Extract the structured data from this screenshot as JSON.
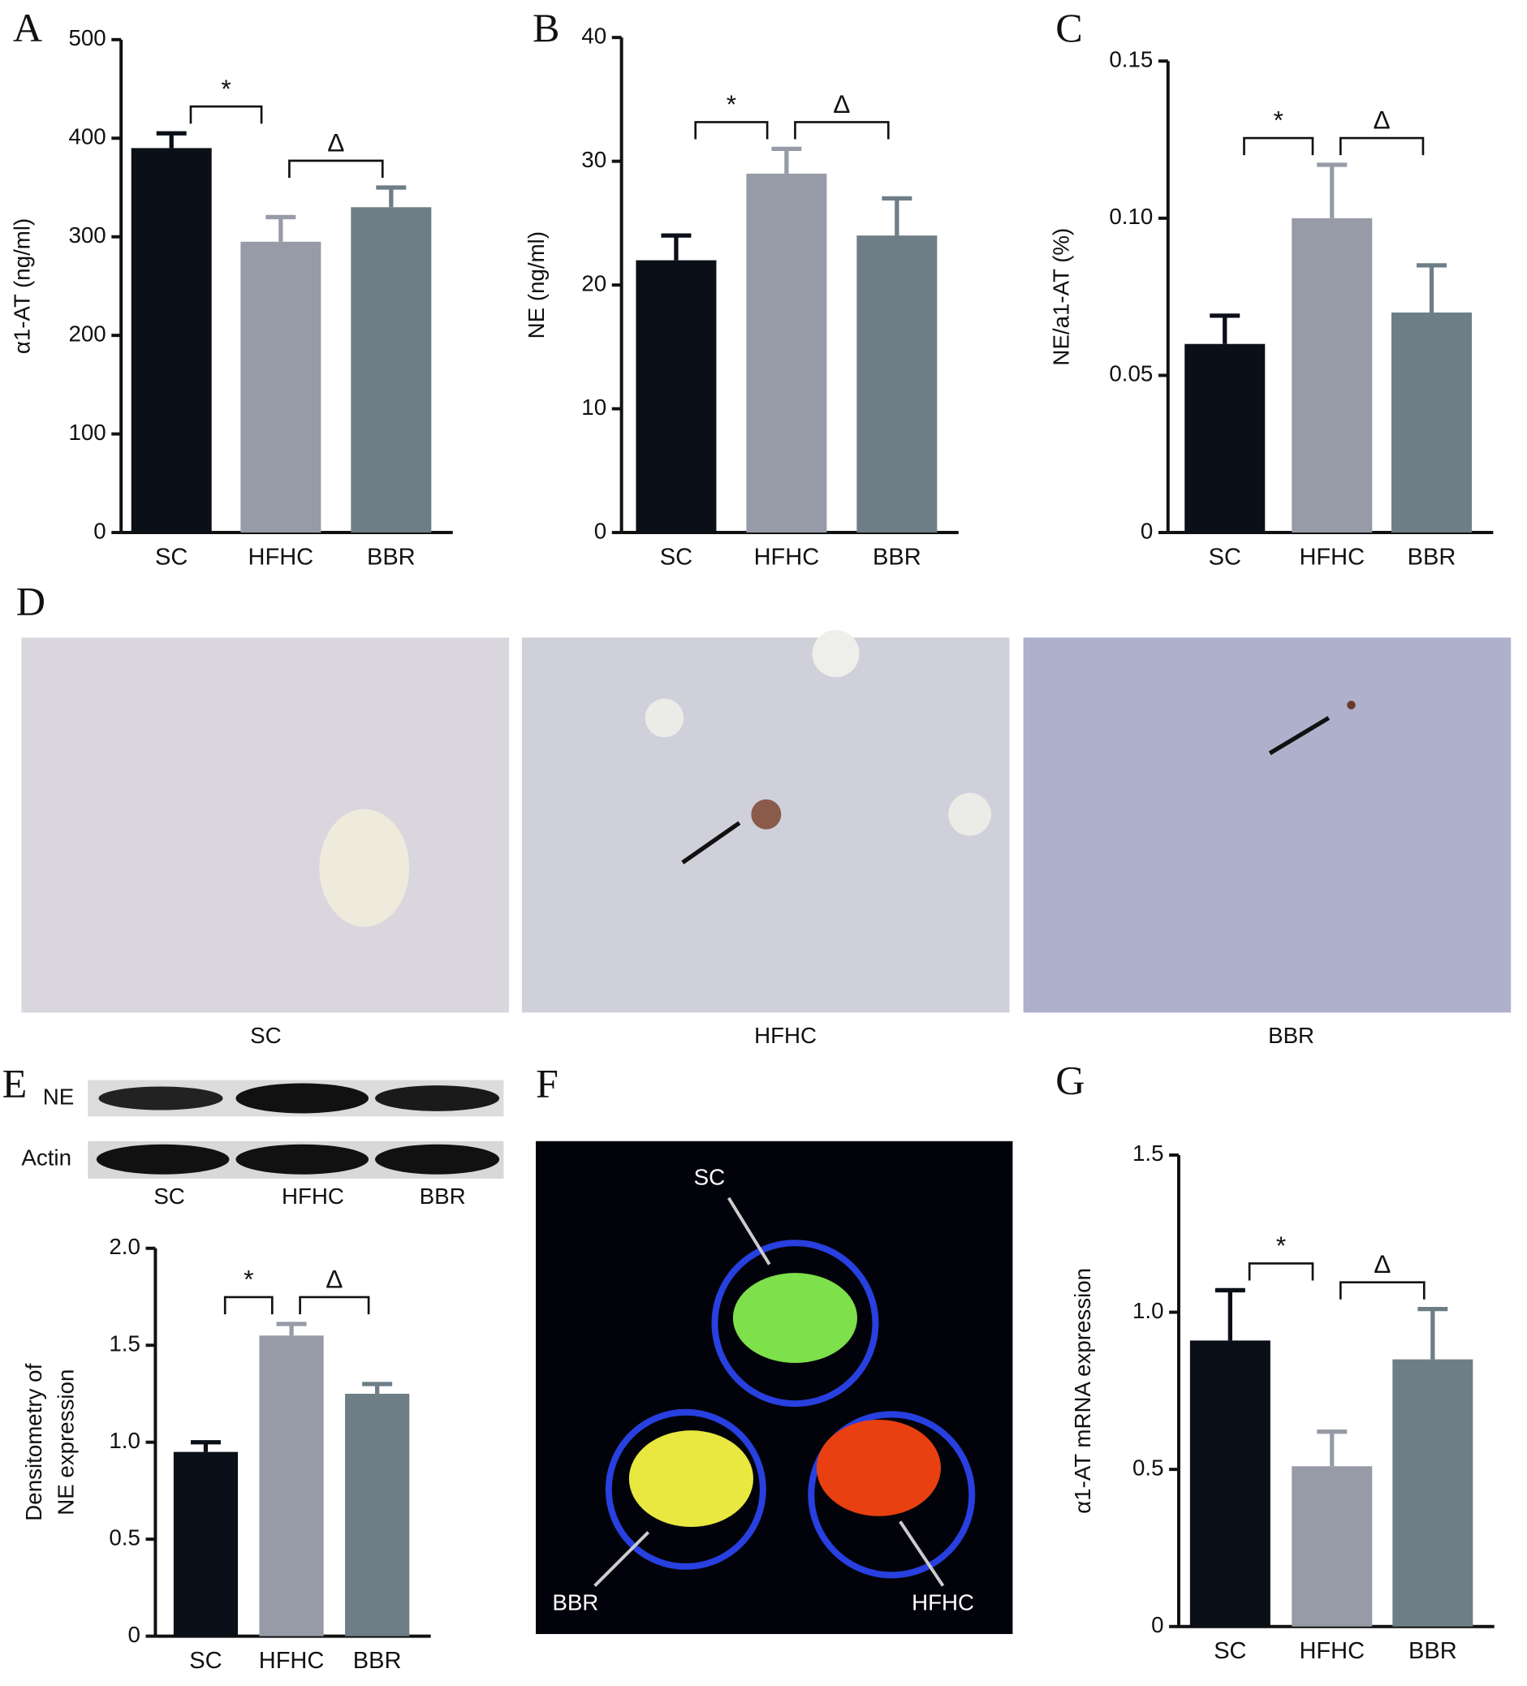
{
  "chart_data": [
    {
      "type": "bar",
      "panel": "A",
      "ylabel": "α1-AT (ng/ml)",
      "categories": [
        "SC",
        "HFHC",
        "BBR"
      ],
      "values": [
        390,
        295,
        330
      ],
      "errors": [
        15,
        25,
        20
      ],
      "colors": [
        "#0b0f18",
        "#979ba7",
        "#6d7e86"
      ],
      "ylim": [
        0,
        500
      ],
      "yticks": [
        0,
        100,
        200,
        300,
        400,
        500
      ],
      "annotations": [
        "*",
        "Δ"
      ]
    },
    {
      "type": "bar",
      "panel": "B",
      "ylabel": "NE (ng/ml)",
      "categories": [
        "SC",
        "HFHC",
        "BBR"
      ],
      "values": [
        22,
        29,
        24
      ],
      "errors": [
        2,
        2,
        3
      ],
      "colors": [
        "#0b0f18",
        "#979ba7",
        "#6d7e86"
      ],
      "ylim": [
        0,
        40
      ],
      "yticks": [
        0,
        10,
        20,
        30,
        40
      ],
      "annotations": [
        "*",
        "Δ"
      ]
    },
    {
      "type": "bar",
      "panel": "C",
      "ylabel": "NE/a1-AT (%)",
      "categories": [
        "SC",
        "HFHC",
        "BBR"
      ],
      "values": [
        0.06,
        0.1,
        0.07
      ],
      "errors": [
        0.009,
        0.017,
        0.015
      ],
      "colors": [
        "#0b0f18",
        "#979ba7",
        "#6d7e86"
      ],
      "ylim": [
        0,
        0.15
      ],
      "yticks": [
        0,
        0.05,
        {
          "value": 0.1,
          "label": "0.10"
        },
        0.15
      ],
      "annotations": [
        "*",
        "Δ"
      ]
    },
    {
      "type": "bar",
      "ylabel": [
        "Densitometry of",
        "NE expression"
      ],
      "categories": [
        "SC",
        "HFHC",
        "BBR"
      ],
      "values": [
        0.95,
        1.55,
        1.25
      ],
      "errors": [
        0.05,
        0.06,
        0.05
      ],
      "colors": [
        "#0b0f18",
        "#979ba7",
        "#6d7e86"
      ],
      "ylim": [
        0,
        2
      ],
      "yticks": [
        0,
        0.5,
        {
          "value": 1,
          "label": "1.0"
        },
        1.5,
        {
          "value": 2,
          "label": "2.0"
        }
      ],
      "annotations": [
        "*",
        "Δ"
      ]
    },
    {
      "type": "bar",
      "panel": "G",
      "ylabel": "α1-AT mRNA expression",
      "categories": [
        "SC",
        "HFHC",
        "BBR"
      ],
      "values": [
        0.91,
        0.51,
        0.85
      ],
      "errors": [
        0.16,
        0.11,
        0.16
      ],
      "colors": [
        "#0b0f18",
        "#979ba7",
        "#6d7e86"
      ],
      "ylim": [
        0,
        1.5
      ],
      "yticks": [
        0,
        0.5,
        {
          "value": 1,
          "label": "1.0"
        },
        1.5
      ],
      "annotations": [
        "*",
        "Δ"
      ]
    }
  ],
  "panel_d": {
    "panel": "D",
    "labels": [
      "SC",
      "HFHC",
      "BBR"
    ]
  },
  "panel_e_blot": {
    "panel": "E",
    "rows": [
      "NE",
      "Actin"
    ],
    "lanes": [
      "SC",
      "HFHC",
      "BBR"
    ]
  },
  "panel_f": {
    "panel": "F",
    "labels": [
      "SC",
      "BBR",
      "HFHC"
    ]
  }
}
